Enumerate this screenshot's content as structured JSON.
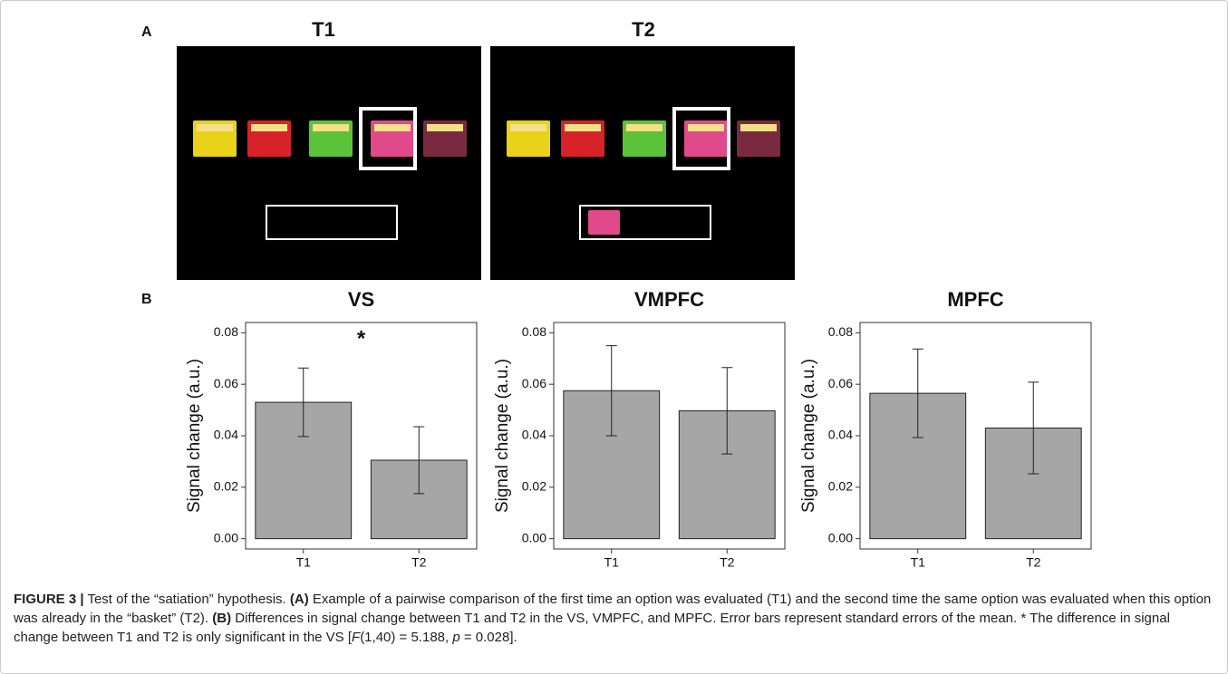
{
  "panel_labels": {
    "a": "A",
    "b": "B"
  },
  "panel_a": {
    "titles": [
      "T1",
      "T2"
    ]
  },
  "chart_data": [
    {
      "type": "bar",
      "title": "VS",
      "y_label": "Signal change (a.u.)",
      "categories": [
        "T1",
        "T2"
      ],
      "values": [
        0.053,
        0.0305
      ],
      "errors": [
        0.0133,
        0.013
      ],
      "color": "#a6a6a6",
      "ylim": [
        -0.004,
        0.084
      ],
      "yticks": [
        {
          "value": 0,
          "label": "0.00"
        },
        0.02,
        0.04,
        0.06,
        0.08
      ],
      "annotation": "*"
    },
    {
      "type": "bar",
      "title": "VMPFC",
      "y_label": "Signal change (a.u.)",
      "categories": [
        "T1",
        "T2"
      ],
      "values": [
        0.0575,
        0.0497
      ],
      "errors": [
        0.0175,
        0.0168
      ],
      "color": "#a6a6a6",
      "ylim": [
        -0.004,
        0.084
      ],
      "yticks": [
        {
          "value": 0,
          "label": "0.00"
        },
        0.02,
        0.04,
        0.06,
        0.08
      ]
    },
    {
      "type": "bar",
      "title": "MPFC",
      "y_label": "Signal change (a.u.)",
      "categories": [
        "T1",
        "T2"
      ],
      "values": [
        0.0565,
        0.043
      ],
      "errors": [
        0.0172,
        0.0178
      ],
      "color": "#a6a6a6",
      "ylim": [
        -0.004,
        0.084
      ],
      "yticks": [
        {
          "value": 0,
          "label": "0.00"
        },
        0.02,
        0.04,
        0.06,
        0.08
      ]
    }
  ],
  "caption": [
    {
      "text": "FIGURE 3 |",
      "style": "bold"
    },
    {
      "text": " Test of the “satiation” hypothesis. ",
      "style": "normal"
    },
    {
      "text": "(A)",
      "style": "bold"
    },
    {
      "text": " Example of a pairwise comparison of the first time an option was evaluated (T1) and the second time the same option was evaluated when this option was already in the “basket” (T2). ",
      "style": "normal"
    },
    {
      "text": "(B)",
      "style": "bold"
    },
    {
      "text": " Differences in signal change between T1 and T2 in the VS, VMPFC, and MPFC. Error bars represent standard errors of the mean. * The difference in signal change between T1 and T2 is only significant in the VS [",
      "style": "normal"
    },
    {
      "text": "F",
      "style": "italic"
    },
    {
      "text": "(1,40) = 5.188, ",
      "style": "normal"
    },
    {
      "text": "p",
      "style": "italic"
    },
    {
      "text": " = 0.028].",
      "style": "normal"
    }
  ]
}
